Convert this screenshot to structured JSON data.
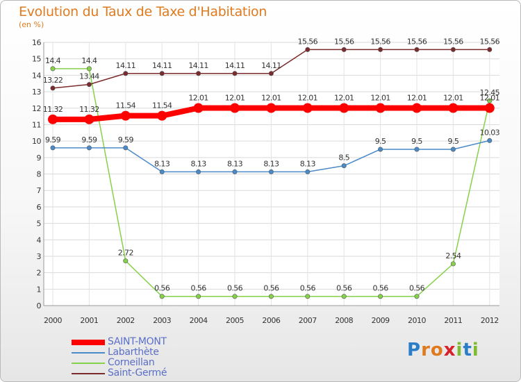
{
  "title": "Evolution du Taux de Taxe d'Habitation",
  "unit_label": "(en %)",
  "logo": {
    "letters": [
      "P",
      "r",
      "o",
      "x",
      "i",
      "t",
      "i"
    ],
    "colors": [
      "#2a7dc7",
      "#e07a1f",
      "#e07a1f",
      "#d6212a",
      "#7dbb2f",
      "#2a7dc7",
      "#7dbb2f"
    ]
  },
  "chart_data": {
    "type": "line",
    "x": [
      "2000",
      "2001",
      "2002",
      "2003",
      "2004",
      "2005",
      "2006",
      "2007",
      "2008",
      "2009",
      "2010",
      "2011",
      "2012"
    ],
    "ylim": [
      0,
      16
    ],
    "yticks": [
      0,
      1,
      2,
      3,
      4,
      5,
      6,
      7,
      8,
      9,
      10,
      11,
      12,
      13,
      14,
      15,
      16
    ],
    "grid": true,
    "legend_position": "bottom-left",
    "series": [
      {
        "name": "SAINT-MONT",
        "color": "#ff0000",
        "width": 8,
        "marker": 7,
        "values": [
          11.32,
          11.32,
          11.54,
          11.54,
          12.01,
          12.01,
          12.01,
          12.01,
          12.01,
          12.01,
          12.01,
          12.01,
          12.01
        ],
        "labels": [
          "11.32",
          "11.32",
          "11.54",
          "11.54",
          "12.01",
          "12.01",
          "12.01",
          "12.01",
          "12.01",
          "12.01",
          "12.01",
          "12.01",
          "12.01"
        ]
      },
      {
        "name": "Labarthète",
        "color": "#4a8ac9",
        "width": 1.5,
        "marker": 3.2,
        "values": [
          9.59,
          9.59,
          9.59,
          8.13,
          8.13,
          8.13,
          8.13,
          8.13,
          8.5,
          9.5,
          9.5,
          9.5,
          10.03
        ],
        "labels": [
          "9.59",
          "9.59",
          "9.59",
          "8.13",
          "8.13",
          "8.13",
          "8.13",
          "8.13",
          "8.5",
          "9.5",
          "9.5",
          "9.5",
          "10.03"
        ]
      },
      {
        "name": "Corneillan",
        "color": "#86d14a",
        "width": 1.5,
        "marker": 3.2,
        "values": [
          14.4,
          14.4,
          2.72,
          0.56,
          0.56,
          0.56,
          0.56,
          0.56,
          0.56,
          0.56,
          0.56,
          2.54,
          12.45
        ],
        "labels": [
          "14.4",
          "14.4",
          "2.72",
          "0.56",
          "0.56",
          "0.56",
          "0.56",
          "0.56",
          "0.56",
          "0.56",
          "0.56",
          "2.54",
          "12.45"
        ]
      },
      {
        "name": "Saint-Germé",
        "color": "#7b2b2b",
        "width": 1.5,
        "marker": 3.2,
        "values": [
          13.22,
          13.44,
          14.11,
          14.11,
          14.11,
          14.11,
          14.11,
          15.56,
          15.56,
          15.56,
          15.56,
          15.56,
          15.56
        ],
        "labels": [
          "13.22",
          "13.44",
          "14.11",
          "14.11",
          "14.11",
          "14.11",
          "14.11",
          "15.56",
          "15.56",
          "15.56",
          "15.56",
          "15.56",
          "15.56"
        ]
      }
    ]
  }
}
